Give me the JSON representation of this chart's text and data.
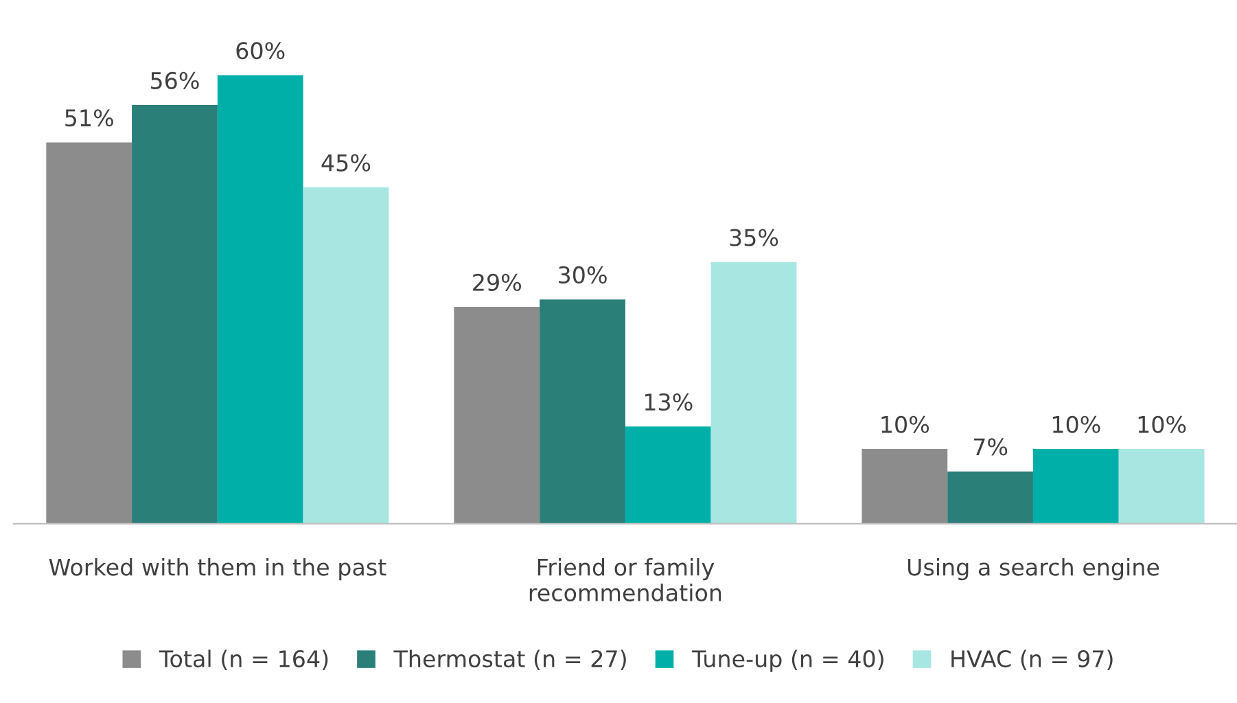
{
  "chart_data": {
    "type": "bar",
    "categories": [
      "Worked with them in the past",
      "Friend or family\nrecommendation",
      "Using a search engine"
    ],
    "series": [
      {
        "name": "Total (n = 164)",
        "color": "#8c8c8c",
        "values": [
          51,
          29,
          10
        ],
        "value_labels": [
          "51%",
          "29%",
          "10%"
        ]
      },
      {
        "name": "Thermostat (n = 27)",
        "color": "#2a7f78",
        "values": [
          56,
          30,
          7
        ],
        "value_labels": [
          "56%",
          "30%",
          "7%"
        ]
      },
      {
        "name": "Tune-up (n = 40)",
        "color": "#00b0a8",
        "values": [
          60,
          13,
          10
        ],
        "value_labels": [
          "60%",
          "13%",
          "10%"
        ]
      },
      {
        "name": "HVAC (n = 97)",
        "color": "#a8e6e2",
        "values": [
          45,
          35,
          10
        ],
        "value_labels": [
          "45%",
          "35%",
          "10%"
        ]
      }
    ],
    "legend": "bottom"
  }
}
